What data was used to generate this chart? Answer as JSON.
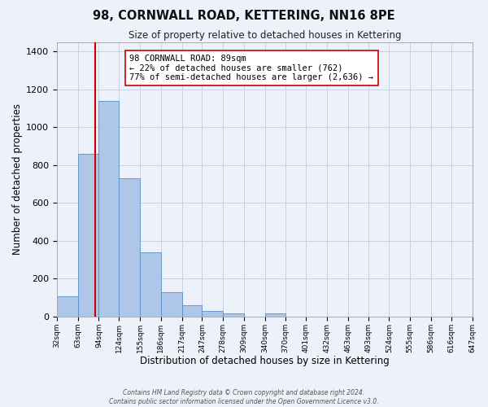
{
  "title": "98, CORNWALL ROAD, KETTERING, NN16 8PE",
  "subtitle": "Size of property relative to detached houses in Kettering",
  "xlabel": "Distribution of detached houses by size in Kettering",
  "ylabel": "Number of detached properties",
  "bin_edges": [
    32,
    63,
    94,
    124,
    155,
    186,
    217,
    247,
    278,
    309,
    340,
    370,
    401,
    432,
    463,
    493,
    524,
    555,
    586,
    616,
    647
  ],
  "bar_heights": [
    105,
    860,
    1140,
    730,
    340,
    130,
    60,
    30,
    15,
    0,
    15,
    0,
    0,
    0,
    0,
    0,
    0,
    0,
    0,
    0
  ],
  "bar_color": "#aec6e8",
  "bar_edge_color": "#5a8fc2",
  "property_size": 89,
  "vline_color": "#cc0000",
  "annotation_text": "98 CORNWALL ROAD: 89sqm\n← 22% of detached houses are smaller (762)\n77% of semi-detached houses are larger (2,636) →",
  "annotation_box_color": "#ffffff",
  "annotation_box_edge": "#cc0000",
  "ylim": [
    0,
    1450
  ],
  "yticks": [
    0,
    200,
    400,
    600,
    800,
    1000,
    1200,
    1400
  ],
  "grid_color": "#c8d0e0",
  "background_color": "#edf1f9",
  "footer_line1": "Contains HM Land Registry data © Crown copyright and database right 2024.",
  "footer_line2": "Contains public sector information licensed under the Open Government Licence v3.0."
}
